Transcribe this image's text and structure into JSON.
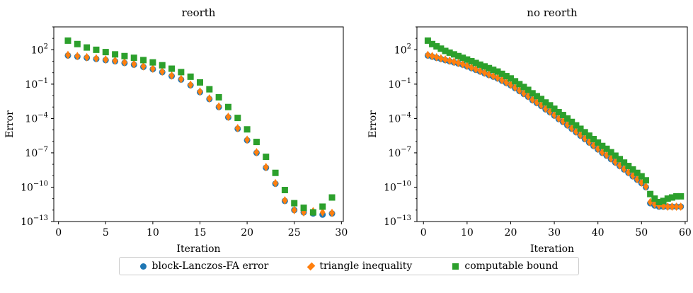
{
  "chart_data": [
    {
      "type": "scatter",
      "title": "reorth",
      "xlabel": "Iteration",
      "ylabel": "Error",
      "xlim": [
        -0.5,
        30.2
      ],
      "ylim_log10": [
        -13,
        4
      ],
      "yscale": "log",
      "xticks": [
        0,
        5,
        10,
        15,
        20,
        25,
        30
      ],
      "yticks": [
        "10^2",
        "10^-1",
        "10^-4",
        "10^-7",
        "10^-10",
        "10^-13"
      ],
      "ytick_exponents": [
        2,
        -1,
        -4,
        -7,
        -10,
        -13
      ],
      "x": [
        1,
        2,
        3,
        4,
        5,
        6,
        7,
        8,
        9,
        10,
        11,
        12,
        13,
        14,
        15,
        16,
        17,
        18,
        19,
        20,
        21,
        22,
        23,
        24,
        25,
        26,
        27,
        28,
        29
      ],
      "series": [
        {
          "name": "block-Lanczos-FA error",
          "marker": "circle",
          "color": "#1f77b4",
          "log10": [
            1.5,
            1.4,
            1.3,
            1.2,
            1.1,
            1.0,
            0.85,
            0.7,
            0.5,
            0.3,
            0.05,
            -0.3,
            -0.6,
            -1.1,
            -1.7,
            -2.3,
            -3.0,
            -3.9,
            -4.9,
            -5.9,
            -7.0,
            -8.3,
            -9.7,
            -11.2,
            -12.0,
            -12.2,
            -12.3,
            -12.4,
            -12.3
          ],
          "log10_note": "",
          "values_unit": "log10"
        },
        {
          "name": "triangle inequality",
          "marker": "diamond",
          "color": "#ff7f0e",
          "log10": [
            1.55,
            1.45,
            1.35,
            1.25,
            1.15,
            1.05,
            0.9,
            0.75,
            0.55,
            0.35,
            0.1,
            -0.25,
            -0.55,
            -1.05,
            -1.65,
            -2.25,
            -2.95,
            -3.85,
            -4.85,
            -5.85,
            -6.95,
            -8.25,
            -9.65,
            -11.15,
            -12.0,
            -12.2,
            -12.1,
            -12.2,
            -12.25
          ]
        },
        {
          "name": "computable bound",
          "marker": "square",
          "color": "#2ca02c",
          "log10": [
            2.8,
            2.5,
            2.2,
            2.0,
            1.8,
            1.6,
            1.45,
            1.3,
            1.1,
            0.9,
            0.65,
            0.35,
            0.05,
            -0.35,
            -0.85,
            -1.45,
            -2.15,
            -3.0,
            -3.95,
            -4.95,
            -6.05,
            -7.35,
            -8.75,
            -10.25,
            -11.4,
            -11.8,
            -12.2,
            -11.7,
            -10.9
          ]
        }
      ]
    },
    {
      "type": "scatter",
      "title": "no reorth",
      "xlabel": "Iteration",
      "ylabel": "Error",
      "xlim": [
        -1.5,
        60.5
      ],
      "ylim_log10": [
        -13,
        4
      ],
      "yscale": "log",
      "xticks": [
        0,
        10,
        20,
        30,
        40,
        50,
        60
      ],
      "yticks": [
        "10^2",
        "10^-1",
        "10^-4",
        "10^-7",
        "10^-10",
        "10^-13"
      ],
      "ytick_exponents": [
        2,
        -1,
        -4,
        -7,
        -10,
        -13
      ],
      "x": [
        1,
        2,
        3,
        4,
        5,
        6,
        7,
        8,
        9,
        10,
        11,
        12,
        13,
        14,
        15,
        16,
        17,
        18,
        19,
        20,
        21,
        22,
        23,
        24,
        25,
        26,
        27,
        28,
        29,
        30,
        31,
        32,
        33,
        34,
        35,
        36,
        37,
        38,
        39,
        40,
        41,
        42,
        43,
        44,
        45,
        46,
        47,
        48,
        49,
        50,
        51,
        52,
        53,
        54,
        55,
        56,
        57,
        58,
        59
      ],
      "series": [
        {
          "name": "block-Lanczos-FA error",
          "marker": "circle",
          "color": "#1f77b4",
          "log10": [
            1.5,
            1.4,
            1.3,
            1.2,
            1.1,
            1.0,
            0.9,
            0.8,
            0.7,
            0.55,
            0.4,
            0.25,
            0.1,
            -0.05,
            -0.2,
            -0.35,
            -0.5,
            -0.7,
            -0.9,
            -1.1,
            -1.35,
            -1.6,
            -1.85,
            -2.1,
            -2.4,
            -2.65,
            -2.9,
            -3.2,
            -3.45,
            -3.75,
            -4.05,
            -4.3,
            -4.6,
            -4.9,
            -5.2,
            -5.5,
            -5.8,
            -6.1,
            -6.4,
            -6.7,
            -7.0,
            -7.25,
            -7.55,
            -7.85,
            -8.15,
            -8.45,
            -8.75,
            -9.05,
            -9.35,
            -9.65,
            -10.0,
            -11.4,
            -11.6,
            -11.7,
            -11.7,
            -11.7,
            -11.7,
            -11.7,
            -11.7
          ]
        },
        {
          "name": "triangle inequality",
          "marker": "diamond",
          "color": "#ff7f0e",
          "log10": [
            1.55,
            1.45,
            1.35,
            1.25,
            1.15,
            1.05,
            0.95,
            0.85,
            0.75,
            0.6,
            0.45,
            0.3,
            0.15,
            0.0,
            -0.15,
            -0.3,
            -0.45,
            -0.65,
            -0.85,
            -1.05,
            -1.3,
            -1.55,
            -1.8,
            -2.05,
            -2.35,
            -2.6,
            -2.85,
            -3.15,
            -3.4,
            -3.7,
            -4.0,
            -4.25,
            -4.55,
            -4.85,
            -5.15,
            -5.45,
            -5.75,
            -6.05,
            -6.35,
            -6.65,
            -6.95,
            -7.2,
            -7.5,
            -7.8,
            -8.1,
            -8.4,
            -8.7,
            -9.0,
            -9.3,
            -9.6,
            -9.95,
            -11.3,
            -11.5,
            -11.6,
            -11.65,
            -11.7,
            -11.7,
            -11.7,
            -11.7
          ]
        },
        {
          "name": "computable bound",
          "marker": "square",
          "color": "#2ca02c",
          "log10": [
            2.8,
            2.5,
            2.3,
            2.1,
            1.9,
            1.75,
            1.6,
            1.45,
            1.3,
            1.15,
            1.0,
            0.85,
            0.7,
            0.55,
            0.4,
            0.25,
            0.1,
            -0.1,
            -0.3,
            -0.5,
            -0.75,
            -1.0,
            -1.25,
            -1.5,
            -1.8,
            -2.05,
            -2.3,
            -2.6,
            -2.85,
            -3.15,
            -3.45,
            -3.7,
            -4.0,
            -4.3,
            -4.6,
            -4.9,
            -5.2,
            -5.5,
            -5.8,
            -6.1,
            -6.4,
            -6.65,
            -6.95,
            -7.25,
            -7.55,
            -7.85,
            -8.15,
            -8.45,
            -8.75,
            -9.05,
            -9.4,
            -10.6,
            -11.0,
            -11.3,
            -11.2,
            -11.0,
            -10.9,
            -10.8,
            -10.8
          ]
        }
      ]
    }
  ],
  "legend": {
    "placement": "bottom-center",
    "items": [
      {
        "label": "block-Lanczos-FA error",
        "marker": "circle",
        "color": "#1f77b4"
      },
      {
        "label": "triangle inequality",
        "marker": "diamond",
        "color": "#ff7f0e"
      },
      {
        "label": "computable bound",
        "marker": "square",
        "color": "#2ca02c"
      }
    ]
  }
}
